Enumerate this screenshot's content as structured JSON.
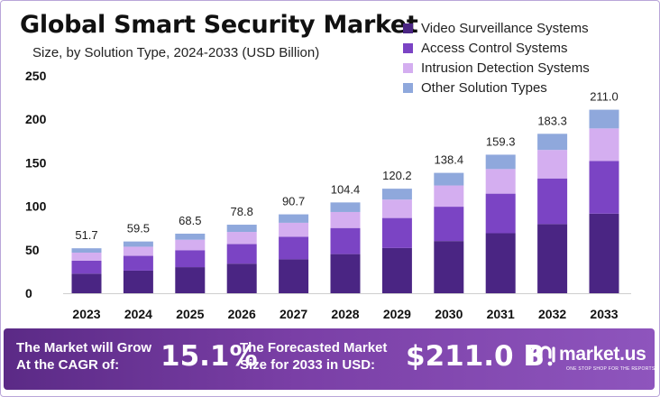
{
  "colors": {
    "video": "#4a2583",
    "access": "#7b44c4",
    "intrusion": "#d4aef0",
    "other": "#8fa8dc",
    "footer": "#6b3598"
  },
  "chart_data": {
    "type": "bar",
    "stacked": true,
    "title": "Global Smart Security Market",
    "subtitle": "Size, by Solution Type, 2024-2033 (USD Billion)",
    "categories": [
      "2023",
      "2024",
      "2025",
      "2026",
      "2027",
      "2028",
      "2029",
      "2030",
      "2031",
      "2032",
      "2033"
    ],
    "totals": [
      51.7,
      59.5,
      68.5,
      78.8,
      90.7,
      104.4,
      120.2,
      138.4,
      159.3,
      183.3,
      211.0
    ],
    "total_labels": [
      "51.7",
      "59.5",
      "68.5",
      "78.8",
      "90.7",
      "104.4",
      "120.2",
      "138.4",
      "159.3",
      "183.3",
      "211.0"
    ],
    "series": [
      {
        "name": "Video Surveillance Systems",
        "color": "#4a2583",
        "values": [
          22.5,
          26.0,
          30.0,
          34.0,
          39.0,
          45.0,
          52.0,
          60.0,
          69.0,
          79.5,
          91.5
        ]
      },
      {
        "name": "Access Control Systems",
        "color": "#7b44c4",
        "values": [
          15.0,
          17.0,
          19.5,
          22.5,
          26.0,
          30.0,
          34.5,
          39.5,
          45.5,
          52.5,
          60.5
        ]
      },
      {
        "name": "Intrusion Detection Systems",
        "color": "#d4aef0",
        "values": [
          9.2,
          10.5,
          12.0,
          14.0,
          16.0,
          18.4,
          21.2,
          24.4,
          28.3,
          32.8,
          37.5
        ]
      },
      {
        "name": "Other Solution Types",
        "color": "#8fa8dc",
        "values": [
          5.0,
          6.0,
          7.0,
          8.3,
          9.7,
          11.0,
          12.5,
          14.5,
          16.5,
          18.5,
          21.5
        ]
      }
    ],
    "yticks": [
      "0",
      "50",
      "100",
      "150",
      "200",
      "250"
    ],
    "ylim": [
      0,
      250
    ],
    "grid": false,
    "legend": "top-right"
  },
  "footer": {
    "cagr_line1": "The Market will Grow",
    "cagr_line2": "At the CAGR of:",
    "cagr_value": "15.1%",
    "forecast_line1": "The Forecasted Market",
    "forecast_line2": "Size for 2033 in USD:",
    "forecast_value": "$211.0 B",
    "brand": "market.us",
    "tagline": "ONE STOP SHOP FOR THE REPORTS"
  }
}
